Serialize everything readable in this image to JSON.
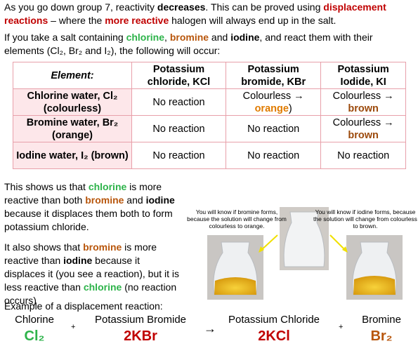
{
  "intro": [
    "As you go down group 7, reactivity ",
    "decreases",
    ". This can be proved using ",
    "displacement reactions",
    " – where the ",
    "more reactive",
    " halogen will always end up in the salt."
  ],
  "setup": [
    "If you take a salt containing ",
    "chlorine",
    ", ",
    "bromine",
    " and ",
    "iodine",
    ", and react them with their elements (Cl₂, Br₂ and I₂), the following will occur:"
  ],
  "table": {
    "header": [
      "Element:",
      "Potassium chloride, KCl",
      "Potassium bromide, KBr",
      "Potassium Iodide, KI"
    ],
    "rows": [
      [
        "Chlorine water, Cl₂ (colourless)",
        "No reaction",
        [
          "Colourless →",
          "orange",
          ")"
        ],
        [
          "Colourless →",
          "brown"
        ]
      ],
      [
        "Bromine water, Br₂ (orange)",
        "No reaction",
        "No reaction",
        [
          "Colourless →",
          "brown"
        ]
      ],
      [
        "Iodine water, I₂ (brown)",
        "No reaction",
        "No reaction",
        "No reaction"
      ]
    ]
  },
  "conclusion1": [
    "This shows us that ",
    "chlorine",
    " is more reactive than both ",
    "bromine",
    " and ",
    "iodine",
    " because it displaces them both to form potassium chloride."
  ],
  "conclusion2": [
    "It also shows that ",
    "bromine",
    " is more reactive than ",
    "iodine",
    " because it displaces it (you see a reaction), but it is less reactive than ",
    "chlorine",
    " (no reaction occurs)"
  ],
  "captions": [
    "You will know if bromine forms, because the solution will change from colourless to orange.",
    "You will know if iodine forms, because the solution will change from colourless to brown."
  ],
  "example": {
    "heading": "Example of a displacement reaction:",
    "names": [
      "Chlorine",
      "Potassium Bromide",
      "Potassium Chloride",
      "Bromine"
    ],
    "formulas": [
      "Cl₂",
      "2KBr",
      "2KCl",
      "Br₂"
    ],
    "operators": [
      "+",
      "→",
      "+"
    ]
  }
}
